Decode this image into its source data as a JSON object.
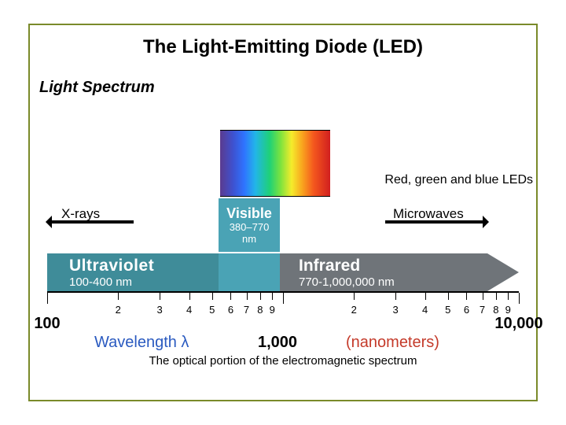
{
  "title": "The Light-Emitting Diode (LED)",
  "subtitle": "Light Spectrum",
  "rgb_caption": "Red, green and blue LEDs",
  "frame_border_color": "#7a8a2a",
  "title_color": "#000000",
  "subtitle_color": "#000000",
  "diagram": {
    "xrays_label": "X-rays",
    "microwaves_label": "Microwaves",
    "visible": {
      "title": "Visible",
      "range": "380–770\nnm",
      "bg": "#4aa3b5",
      "text_color": "#ffffff"
    },
    "uv": {
      "title": "Ultraviolet",
      "range": "100-400 nm"
    },
    "ir": {
      "title": "Infrared",
      "range": "770-1,000,000 nm"
    },
    "big_arrow": {
      "left_color": "#3f8c99",
      "right_color": "#6f7479",
      "vis_strip_color": "#4aa3b5"
    },
    "axis": {
      "log_start": 2,
      "log_end": 4,
      "start_label": "100",
      "mid_label": "1,000",
      "end_label": "10,000",
      "minor_labels": [
        "2",
        "3",
        "4",
        "5",
        "6",
        "7",
        "8",
        "9"
      ]
    },
    "wavelength_label": "Wavelength λ",
    "wavelength_label_color": "#2a5ac0",
    "units_label": "(nanometers)",
    "units_label_color": "#c43a2a",
    "footer": "The optical portion of the electromagnetic spectrum"
  }
}
